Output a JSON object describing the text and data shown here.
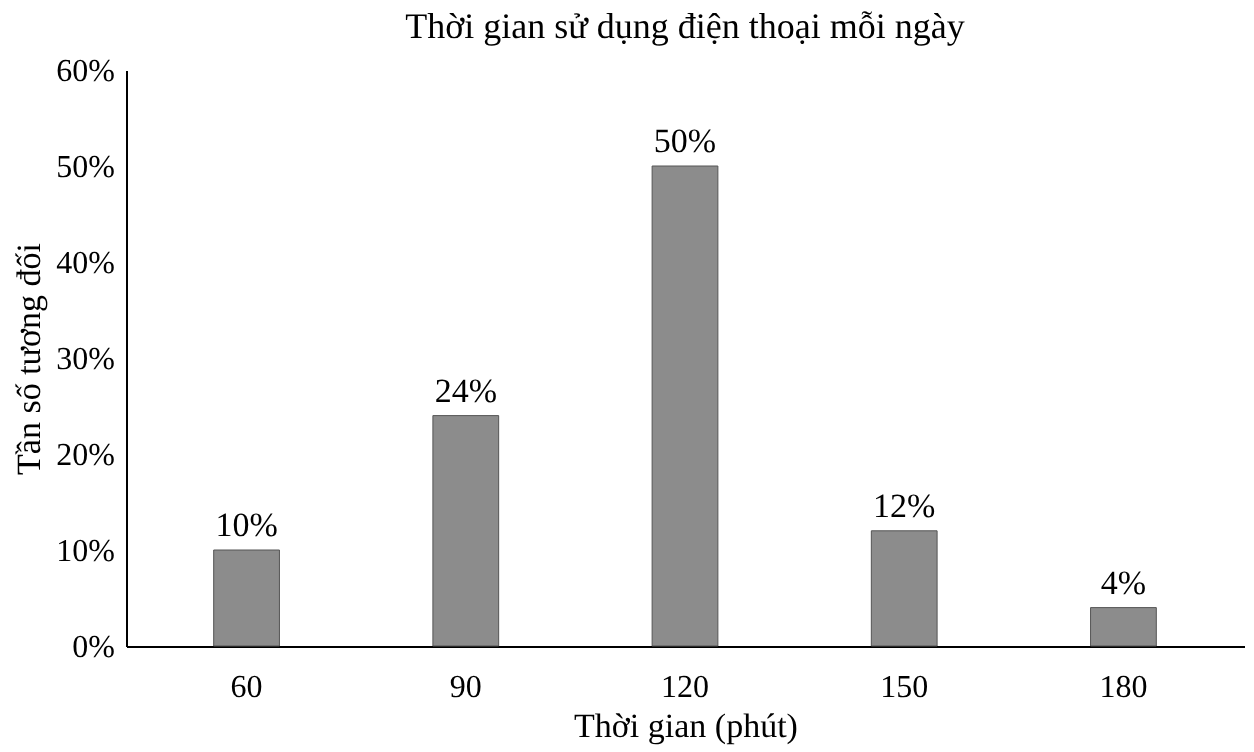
{
  "chart_data": {
    "type": "bar",
    "title": "Thời gian sử dụng điện thoại mỗi ngày",
    "xlabel": "Thời gian (phút)",
    "ylabel": "Tần số tương đối",
    "categories": [
      "60",
      "90",
      "120",
      "150",
      "180"
    ],
    "values": [
      10,
      24,
      50,
      12,
      4
    ],
    "value_labels": [
      "10%",
      "24%",
      "50%",
      "12%",
      "4%"
    ],
    "color": "#8c8c8c",
    "ylim": [
      0,
      60
    ],
    "yticks": [
      {
        "value": 0,
        "label": "0%"
      },
      {
        "value": 10,
        "label": "10%"
      },
      {
        "value": 20,
        "label": "20%"
      },
      {
        "value": 30,
        "label": "30%"
      },
      {
        "value": 40,
        "label": "40%"
      },
      {
        "value": 50,
        "label": "50%"
      },
      {
        "value": 60,
        "label": "60%"
      }
    ]
  }
}
